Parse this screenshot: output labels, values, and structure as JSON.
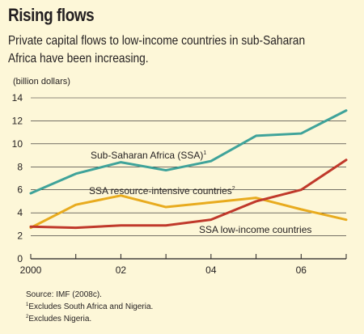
{
  "title": "Rising flows",
  "subtitle_line1": "Private capital flows to low-income countries in sub-Saharan",
  "subtitle_line2": "Africa have been increasing.",
  "chart_data": {
    "type": "line",
    "ylabel": "(billion dollars)",
    "ylim": [
      0,
      14
    ],
    "yticks": [
      0,
      2,
      4,
      6,
      8,
      10,
      12,
      14
    ],
    "xlim": [
      2000,
      2007
    ],
    "xticks": [
      2000,
      2002,
      2004,
      2006
    ],
    "xtick_labels": [
      "2000",
      "02",
      "04",
      "06"
    ],
    "x": [
      2000,
      2001,
      2002,
      2003,
      2004,
      2005,
      2006,
      2007
    ],
    "grid": true,
    "series": [
      {
        "name": "Sub-Saharan Africa (SSA)",
        "footnote": "1",
        "color": "#3fa39a",
        "values": [
          5.7,
          7.4,
          8.4,
          7.7,
          8.5,
          10.7,
          10.9,
          12.9
        ]
      },
      {
        "name": "SSA resource-intensive countries",
        "footnote": "2",
        "color": "#e8ab1e",
        "values": [
          2.7,
          4.7,
          5.5,
          4.5,
          4.9,
          5.3,
          4.3,
          3.4
        ]
      },
      {
        "name": "SSA low-income countries",
        "footnote": "",
        "color": "#c0392b",
        "values": [
          2.8,
          2.7,
          2.9,
          2.9,
          3.4,
          5.0,
          6.0,
          8.6
        ]
      }
    ]
  },
  "source": "Source:  IMF (2008c).",
  "footnote1_mark": "1",
  "footnote1": "Excludes South Africa and Nigeria.",
  "footnote2_mark": "2",
  "footnote2": "Excludes Nigeria."
}
